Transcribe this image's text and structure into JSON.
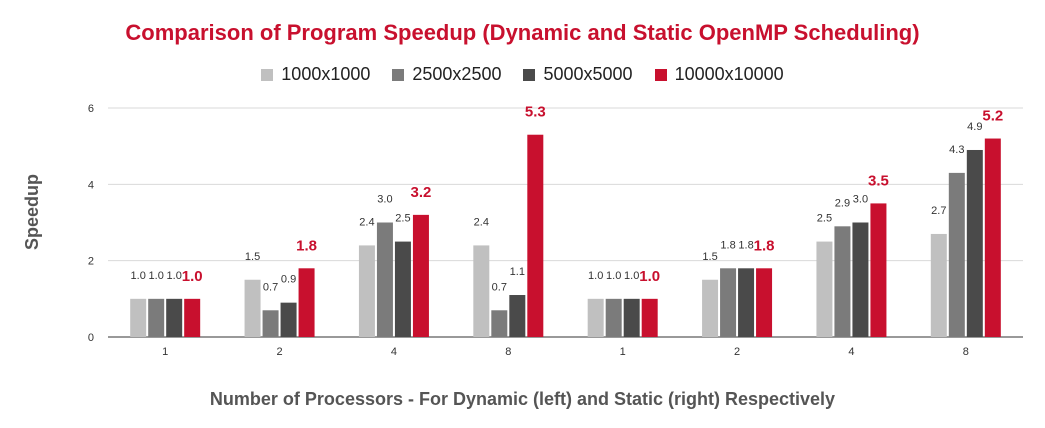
{
  "chart_data": {
    "type": "bar",
    "title": "Comparison of Program Speedup (Dynamic and Static OpenMP Scheduling)",
    "xlabel": "Number of Processors - For Dynamic (left) and Static (right) Respectively",
    "ylabel": "Speedup",
    "categories": [
      "1",
      "2",
      "4",
      "8",
      "1",
      "2",
      "4",
      "8"
    ],
    "ylim": [
      0,
      6
    ],
    "yticks": [
      "0",
      "2",
      "4",
      "6"
    ],
    "grid": true,
    "legend_position": "top",
    "series": [
      {
        "name": "1000x1000",
        "color": "#c0c0c0",
        "values": [
          1.0,
          1.5,
          2.4,
          2.4,
          1.0,
          1.5,
          2.5,
          2.7
        ]
      },
      {
        "name": "2500x2500",
        "color": "#7b7b7b",
        "values": [
          1.0,
          0.7,
          3.0,
          0.7,
          1.0,
          1.8,
          2.9,
          4.3
        ]
      },
      {
        "name": "5000x5000",
        "color": "#4a4a4a",
        "values": [
          1.0,
          0.9,
          2.5,
          1.1,
          1.0,
          1.8,
          3.0,
          4.9
        ]
      },
      {
        "name": "10000x10000",
        "color": "#c8102e",
        "values": [
          1.0,
          1.8,
          3.2,
          5.3,
          1.0,
          1.8,
          3.5,
          5.2
        ]
      }
    ],
    "data_labels": [
      [
        "1.0",
        "1.5",
        "2.4",
        "2.4",
        "1.0",
        "1.5",
        "2.5",
        "2.7"
      ],
      [
        "1.0",
        "0.7",
        "3.0",
        "0.7",
        "1.0",
        "1.8",
        "2.9",
        "4.3"
      ],
      [
        "1.0",
        "0.9",
        "2.5",
        "1.1",
        "1.0",
        "1.8",
        "3.0",
        "4.9"
      ],
      [
        "1.0",
        "1.8",
        "3.2",
        "5.3",
        "1.0",
        "1.8",
        "3.5",
        "5.2"
      ]
    ]
  }
}
